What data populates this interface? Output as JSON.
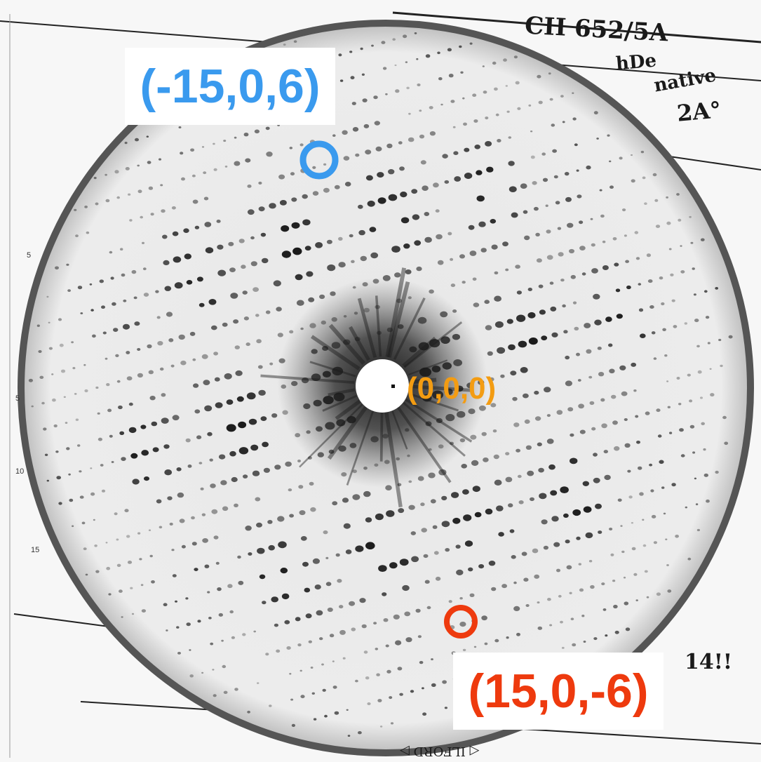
{
  "image": {
    "description_free": true,
    "colors": {
      "film_background": "#f2f2f2",
      "spot": "#141414",
      "label_a": "#3a9aee",
      "label_b": "#f39c12",
      "label_c": "#ee3a0e",
      "marker_a": "#3a9aee",
      "marker_c": "#ee3a0e"
    }
  },
  "labels": {
    "top_left": "(-15,0,6)",
    "center": "(0,0,0)",
    "bottom_right": "(15,0,-6)"
  },
  "handwriting": {
    "line1": "CH 652/5A",
    "line2": "hDe",
    "line3": "native",
    "line4": "2A°",
    "bottom_note": "14!!"
  },
  "film_mark": "◁ ILFORD ▷",
  "margin_ticks": [
    "5",
    "5",
    "10",
    "15"
  ]
}
